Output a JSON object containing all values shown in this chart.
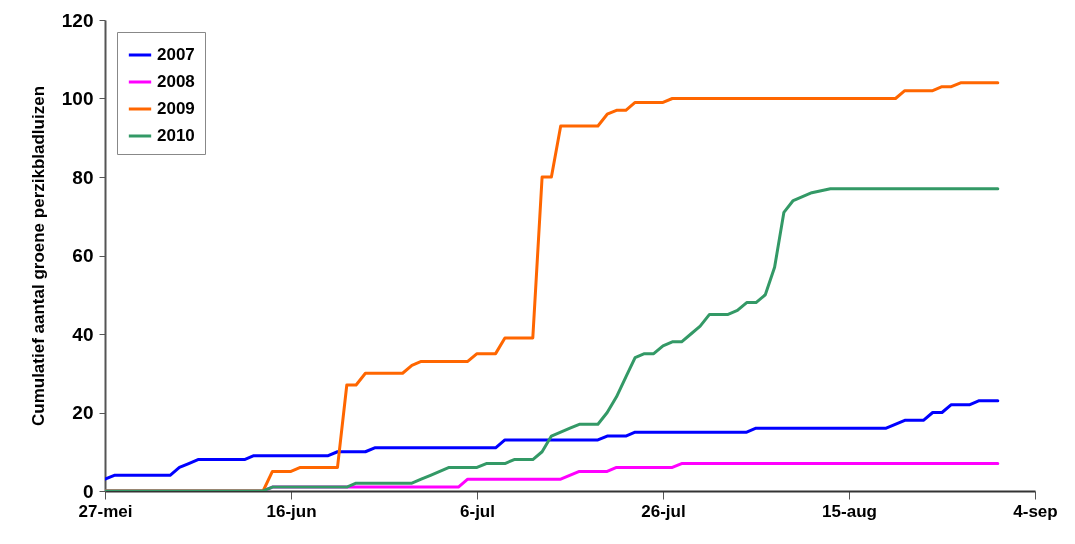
{
  "chart_data": {
    "type": "line",
    "ylabel": "Cumulatief aantal groene perzikbladluizen",
    "xlim": [
      "--05-27",
      "--09-04"
    ],
    "xticks": [
      {
        "value": "--05-27",
        "label": "27-mei"
      },
      {
        "value": "--06-16",
        "label": "16-jun"
      },
      {
        "value": "--07-06",
        "label": "6-jul"
      },
      {
        "value": "--07-26",
        "label": "26-jul"
      },
      {
        "value": "--08-15",
        "label": "15-aug"
      },
      {
        "value": "--09-04",
        "label": "4-sep"
      }
    ],
    "ylim": [
      0,
      120
    ],
    "yticks": [
      0,
      20,
      40,
      60,
      80,
      100,
      120
    ],
    "grid": false,
    "legend": "top left",
    "marker": "none",
    "line_style": "solid",
    "series": [
      {
        "name": "2007",
        "color": "#0000ff",
        "x": [
          "--05-27",
          "--05-28",
          "--06-03",
          "--06-04",
          "--06-05",
          "--06-06",
          "--06-11",
          "--06-12",
          "--06-20",
          "--06-21",
          "--06-24",
          "--06-25",
          "--07-08",
          "--07-09",
          "--07-19",
          "--07-20",
          "--07-22",
          "--07-23",
          "--08-04",
          "--08-05",
          "--08-19",
          "--08-21",
          "--08-23",
          "--08-24",
          "--08-25",
          "--08-26",
          "--08-28",
          "--08-29",
          "--08-31"
        ],
        "values": [
          3,
          4,
          4,
          6,
          7,
          8,
          8,
          9,
          9,
          10,
          10,
          11,
          11,
          13,
          13,
          14,
          14,
          15,
          15,
          16,
          16,
          18,
          18,
          20,
          20,
          22,
          22,
          23,
          23
        ]
      },
      {
        "name": "2008",
        "color": "#ff00ff",
        "x": [
          "--05-27",
          "--06-13",
          "--06-14",
          "--07-04",
          "--07-05",
          "--07-15",
          "--07-17",
          "--07-20",
          "--07-21",
          "--07-27",
          "--07-28",
          "--08-31"
        ],
        "values": [
          0,
          0,
          1,
          1,
          3,
          3,
          5,
          5,
          6,
          6,
          7,
          7
        ]
      },
      {
        "name": "2009",
        "color": "#ff6600",
        "x": [
          "--05-27",
          "--06-13",
          "--06-14",
          "--06-16",
          "--06-17",
          "--06-21",
          "--06-22",
          "--06-23",
          "--06-24",
          "--06-28",
          "--06-29",
          "--06-30",
          "--07-05",
          "--07-06",
          "--07-08",
          "--07-09",
          "--07-12",
          "--07-13",
          "--07-14",
          "--07-15",
          "--07-19",
          "--07-20",
          "--07-21",
          "--07-22",
          "--07-23",
          "--07-26",
          "--07-27",
          "--08-20",
          "--08-21",
          "--08-24",
          "--08-25",
          "--08-26",
          "--08-27",
          "--08-31"
        ],
        "values": [
          0,
          0,
          5,
          5,
          6,
          6,
          27,
          27,
          30,
          30,
          32,
          33,
          33,
          35,
          35,
          39,
          39,
          80,
          80,
          93,
          93,
          96,
          97,
          97,
          99,
          99,
          100,
          100,
          102,
          102,
          103,
          103,
          104,
          104
        ]
      },
      {
        "name": "2010",
        "color": "#339966",
        "x": [
          "--05-27",
          "--06-13",
          "--06-14",
          "--06-22",
          "--06-23",
          "--06-29",
          "--06-30",
          "--07-01",
          "--07-03",
          "--07-06",
          "--07-07",
          "--07-09",
          "--07-10",
          "--07-12",
          "--07-13",
          "--07-14",
          "--07-16",
          "--07-17",
          "--07-19",
          "--07-20",
          "--07-21",
          "--07-22",
          "--07-23",
          "--07-24",
          "--07-25",
          "--07-26",
          "--07-27",
          "--07-28",
          "--07-29",
          "--07-30",
          "--07-31",
          "--08-02",
          "--08-03",
          "--08-04",
          "--08-05",
          "--08-06",
          "--08-07",
          "--08-08",
          "--08-09",
          "--08-10",
          "--08-11",
          "--08-13",
          "--08-31"
        ],
        "values": [
          0,
          0,
          1,
          1,
          2,
          2,
          3,
          4,
          6,
          6,
          7,
          7,
          8,
          8,
          10,
          14,
          16,
          17,
          17,
          20,
          24,
          29,
          34,
          35,
          35,
          37,
          38,
          38,
          40,
          42,
          45,
          45,
          46,
          48,
          48,
          50,
          57,
          71,
          74,
          75,
          76,
          77,
          77
        ]
      }
    ]
  }
}
